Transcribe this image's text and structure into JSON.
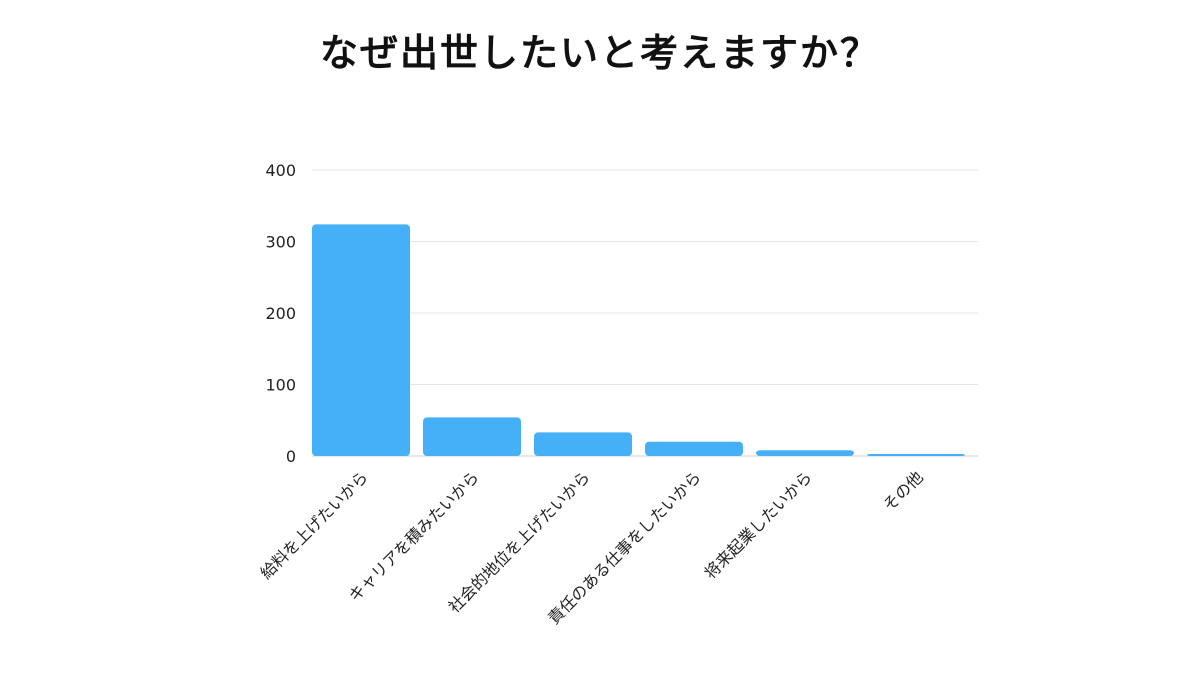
{
  "title": "なぜ出世したいと考えますか？",
  "colors": {
    "bar": "#45b0f7",
    "grid": "#e6e6e6",
    "baseline": "#d0d0d0"
  },
  "chart_data": {
    "type": "bar",
    "title": "なぜ出世したいと考えますか？",
    "xlabel": "",
    "ylabel": "",
    "categories": [
      "給料を上げたいから",
      "キャリアを積みたいから",
      "社会的地位を上げたいから",
      "責任のある仕事をしたいから",
      "将来起業したいから",
      "その他"
    ],
    "values": [
      324,
      54,
      33,
      20,
      8,
      2
    ],
    "ylim": [
      0,
      400
    ],
    "yticks": [
      0,
      100,
      200,
      300,
      400
    ],
    "grid": true,
    "legend": "none"
  }
}
